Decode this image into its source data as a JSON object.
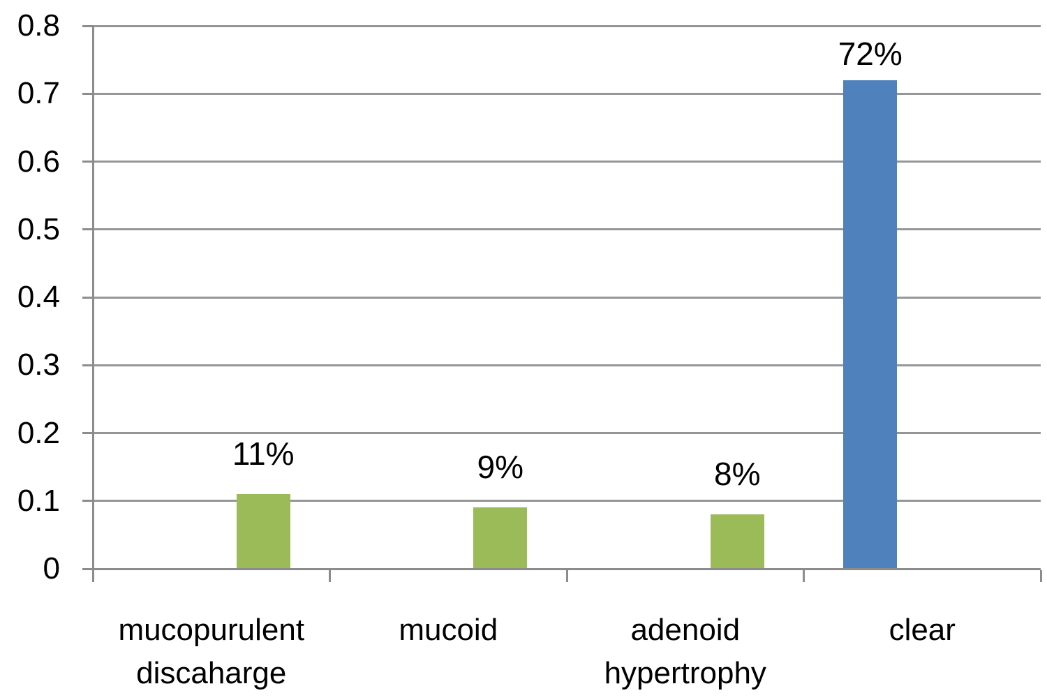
{
  "chart_data": {
    "type": "bar",
    "title": "",
    "xlabel": "",
    "ylabel": "",
    "legend": "none",
    "grid": "horizontal",
    "ylim": [
      0,
      0.8
    ],
    "y_tick_step": 0.1,
    "y_tick_labels": [
      "0",
      "0.1",
      "0.2",
      "0.3",
      "0.4",
      "0.5",
      "0.6",
      "0.7",
      "0.8"
    ],
    "categories": [
      [
        "mucopurulent",
        "discaharge"
      ],
      [
        "mucoid"
      ],
      [
        "adenoid",
        "hypertrophy"
      ],
      [
        "clear"
      ]
    ],
    "series": [
      {
        "color": "#4F81BD",
        "values": [
          null,
          null,
          null,
          0.72
        ],
        "data_labels": [
          null,
          null,
          null,
          "72%"
        ]
      },
      {
        "color": "#9BBB59",
        "values": [
          0.11,
          0.09,
          0.08,
          null
        ],
        "data_labels": [
          "11%",
          "9%",
          "8%",
          null
        ]
      }
    ]
  },
  "colors": {
    "gridline": "#969696",
    "axis": "#8C8C8C",
    "text": "#000000",
    "background": "#FFFFFF"
  }
}
